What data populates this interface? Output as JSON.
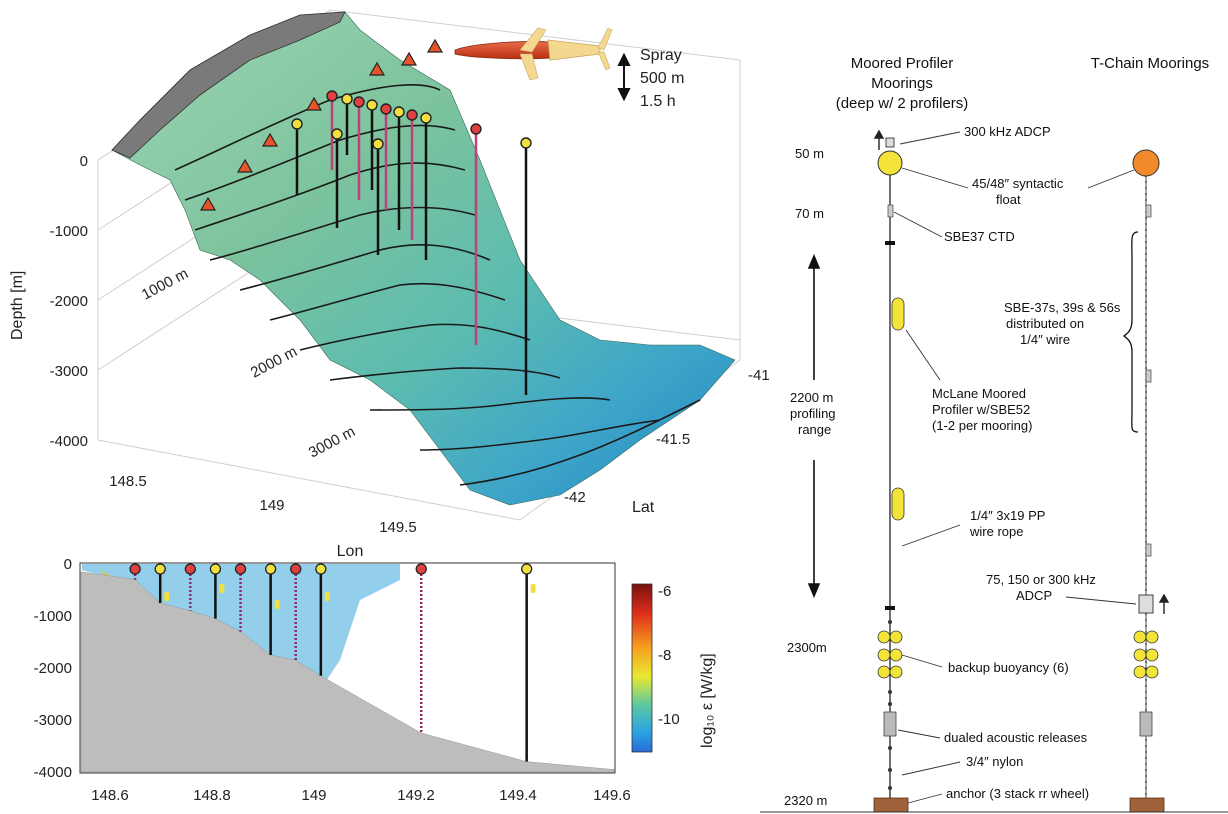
{
  "map3d": {
    "ylabel": "Depth [m]",
    "xlabel": "Lon",
    "lat_label": "Lat",
    "z_ticks": [
      "0",
      "-1000",
      "-2000",
      "-3000",
      "-4000"
    ],
    "lon_ticks": [
      "148.5",
      "149",
      "149.5"
    ],
    "lat_ticks": [
      "-41",
      "-41.5",
      "-42"
    ],
    "contour_labels": [
      "1000 m",
      "2000 m",
      "3000 m"
    ],
    "spray": {
      "name": "Spray",
      "range": "500 m",
      "period": "1.5 h"
    }
  },
  "section": {
    "y_ticks": [
      "0",
      "-1000",
      "-2000",
      "-3000",
      "-4000"
    ],
    "x_ticks": [
      "148.6",
      "148.8",
      "149",
      "149.2",
      "149.4",
      "149.6"
    ],
    "colorbar_ticks": [
      "-6",
      "-8",
      "-10"
    ],
    "colorbar_label": "log₁₀ ε [W/kg]",
    "xlim": [
      148.6,
      149.6
    ],
    "ylim": [
      -4000,
      0
    ],
    "moorings": [
      {
        "lon": 148.65,
        "bottom": -300,
        "type": "tchain"
      },
      {
        "lon": 148.7,
        "bottom": -750,
        "type": "profiler"
      },
      {
        "lon": 148.76,
        "bottom": -900,
        "type": "tchain"
      },
      {
        "lon": 148.81,
        "bottom": -1050,
        "type": "profiler"
      },
      {
        "lon": 148.86,
        "bottom": -1300,
        "type": "tchain"
      },
      {
        "lon": 148.92,
        "bottom": -1750,
        "type": "profiler"
      },
      {
        "lon": 148.97,
        "bottom": -1850,
        "type": "tchain"
      },
      {
        "lon": 149.02,
        "bottom": -2150,
        "type": "profiler"
      },
      {
        "lon": 149.22,
        "bottom": -3250,
        "type": "tchain"
      },
      {
        "lon": 149.43,
        "bottom": -3800,
        "type": "profiler"
      }
    ]
  },
  "schematic": {
    "title_profiler": [
      "Moored Profiler",
      "Moorings",
      "(deep w/ 2 profilers)"
    ],
    "title_tchain": "T-Chain Moorings",
    "depth_labels": [
      "50 m",
      "70 m",
      "2300m",
      "2320 m"
    ],
    "range_label": [
      "2200 m",
      "profiling",
      "range"
    ],
    "callouts": {
      "adcp_top": "300 kHz ADCP",
      "float": [
        "45/48″ syntactic",
        "float"
      ],
      "ctd": "SBE37 CTD",
      "sensors": [
        "SBE-37s, 39s & 56s",
        "distributed on",
        "1/4″ wire"
      ],
      "profiler": [
        "McLane Moored",
        "Profiler w/SBE52",
        "(1-2 per mooring)"
      ],
      "wire": [
        "1/4″ 3x19 PP",
        "wire rope"
      ],
      "adcp_bottom": [
        "75, 150 or 300 kHz",
        "ADCP"
      ],
      "backup": "backup buoyancy (6)",
      "releases": "dualed acoustic releases",
      "nylon": "3/4″ nylon",
      "anchor": "anchor (3 stack rr wheel)"
    },
    "colors": {
      "profiler_float": "#f4e43a",
      "tchain_float": "#f08a2a",
      "anchor": "#a0623a"
    }
  }
}
